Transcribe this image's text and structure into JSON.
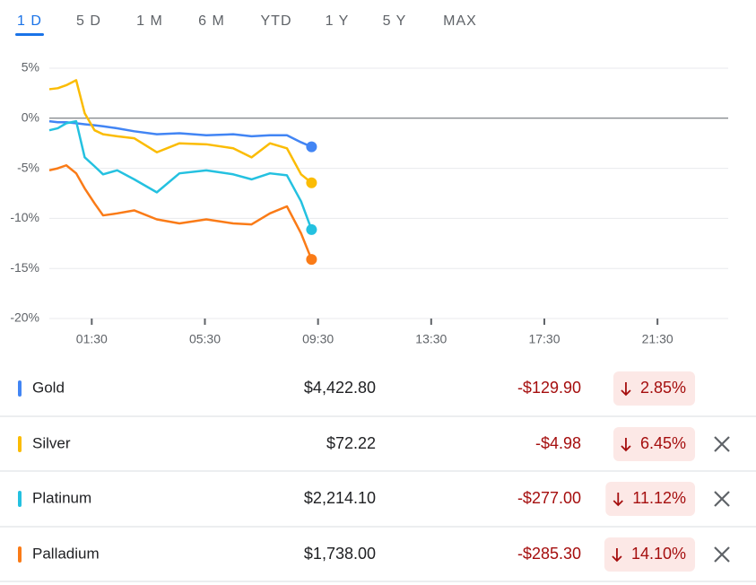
{
  "tabs": [
    "1 D",
    "5 D",
    "1 M",
    "6 M",
    "YTD",
    "1 Y",
    "5 Y",
    "MAX"
  ],
  "chart_data": {
    "type": "line",
    "x": [
      0,
      0.3,
      0.6,
      0.95,
      1.25,
      1.6,
      1.9,
      2.4,
      3,
      3.8,
      4.6,
      5.55,
      6.5,
      7.15,
      7.8,
      8.4,
      8.9,
      9.27
    ],
    "xlim": [
      0,
      24
    ],
    "xticks": [
      {
        "value": 1.5,
        "label": "01:30"
      },
      {
        "value": 5.5,
        "label": "05:30"
      },
      {
        "value": 9.5,
        "label": "09:30"
      },
      {
        "value": 13.5,
        "label": "13:30"
      },
      {
        "value": 17.5,
        "label": "17:30"
      },
      {
        "value": 21.5,
        "label": "21:30"
      }
    ],
    "ylim": [
      -20,
      5
    ],
    "yticks": [
      {
        "value": 5,
        "label": "5%"
      },
      {
        "value": 0,
        "label": "0%"
      },
      {
        "value": -5,
        "label": "-5%"
      },
      {
        "value": -10,
        "label": "-10%"
      },
      {
        "value": -15,
        "label": "-15%"
      },
      {
        "value": -20,
        "label": "-20%"
      }
    ],
    "grid": true,
    "series": [
      {
        "name": "Gold",
        "color": "#4285f4",
        "values": [
          -0.3,
          -0.4,
          -0.4,
          -0.5,
          -0.6,
          -0.7,
          -0.8,
          -1.0,
          -1.3,
          -1.6,
          -1.5,
          -1.7,
          -1.6,
          -1.8,
          -1.7,
          -1.7,
          -2.4,
          -2.85
        ]
      },
      {
        "name": "Silver",
        "color": "#fbbc04",
        "values": [
          2.9,
          3.0,
          3.3,
          3.8,
          0.5,
          -1.2,
          -1.6,
          -1.8,
          -2.0,
          -3.4,
          -2.5,
          -2.6,
          -3.0,
          -3.9,
          -2.5,
          -3.0,
          -5.6,
          -6.45
        ]
      },
      {
        "name": "Platinum",
        "color": "#24c1e0",
        "values": [
          -1.2,
          -1.0,
          -0.5,
          -0.3,
          -3.9,
          -4.8,
          -5.6,
          -5.2,
          -6.1,
          -7.4,
          -5.5,
          -5.2,
          -5.6,
          -6.1,
          -5.5,
          -5.7,
          -8.3,
          -11.12
        ]
      },
      {
        "name": "Palladium",
        "color": "#fa7b17",
        "values": [
          -5.2,
          -5.0,
          -4.7,
          -5.5,
          -7.0,
          -8.5,
          -9.7,
          -9.5,
          -9.2,
          -10.1,
          -10.5,
          -10.1,
          -10.5,
          -10.6,
          -9.5,
          -8.8,
          -11.5,
          -14.1
        ]
      }
    ]
  },
  "rows": [
    {
      "price": "$4,422.80",
      "change": "-$129.90",
      "percent": "2.85%"
    },
    {
      "price": "$72.22",
      "change": "-$4.98",
      "percent": "6.45%"
    },
    {
      "price": "$2,214.10",
      "change": "-$277.00",
      "percent": "11.12%"
    },
    {
      "price": "$1,738.00",
      "change": "-$285.30",
      "percent": "14.10%"
    }
  ]
}
